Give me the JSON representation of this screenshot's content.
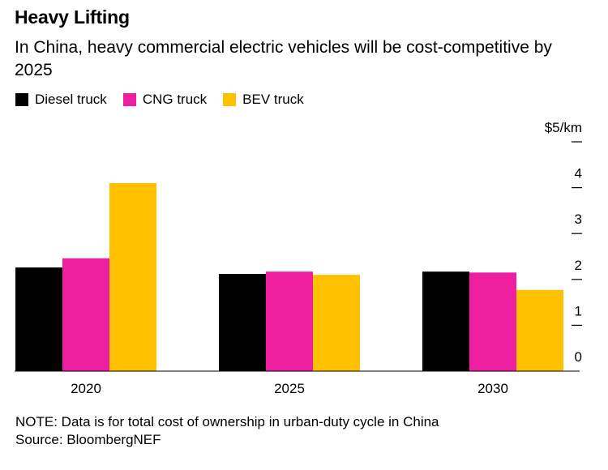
{
  "header": {
    "title": "Heavy Lifting",
    "subtitle": "In China, heavy commercial electric vehicles will be cost-competitive by 2025"
  },
  "footer": {
    "note": "NOTE: Data is for total cost of ownership in urban-duty cycle in China",
    "source": "Source: BloombergNEF"
  },
  "chart_data": {
    "type": "bar",
    "title": "Heavy Lifting",
    "subtitle": "In China, heavy commercial electric vehicles will be cost-competitive by 2025",
    "categories": [
      "2020",
      "2025",
      "2030"
    ],
    "series": [
      {
        "name": "Diesel truck",
        "color": "#000000",
        "values": [
          2.26,
          2.12,
          2.17
        ]
      },
      {
        "name": "CNG truck",
        "color": "#ee1fa0",
        "values": [
          2.46,
          2.17,
          2.15
        ]
      },
      {
        "name": "BEV truck",
        "color": "#ffc000",
        "values": [
          4.1,
          2.1,
          1.77
        ]
      }
    ],
    "yunit_label": "$5/km",
    "yticks": [
      {
        "value": 1,
        "label": "1"
      },
      {
        "value": 2,
        "label": "2"
      },
      {
        "value": 3,
        "label": "3"
      },
      {
        "value": 4,
        "label": "4"
      },
      {
        "value": 5,
        "label": "$5/km"
      }
    ],
    "zero_label": "0",
    "ylim": [
      0,
      5
    ],
    "y_axis_position": "right",
    "grid": false,
    "legend_position": "top-left"
  }
}
